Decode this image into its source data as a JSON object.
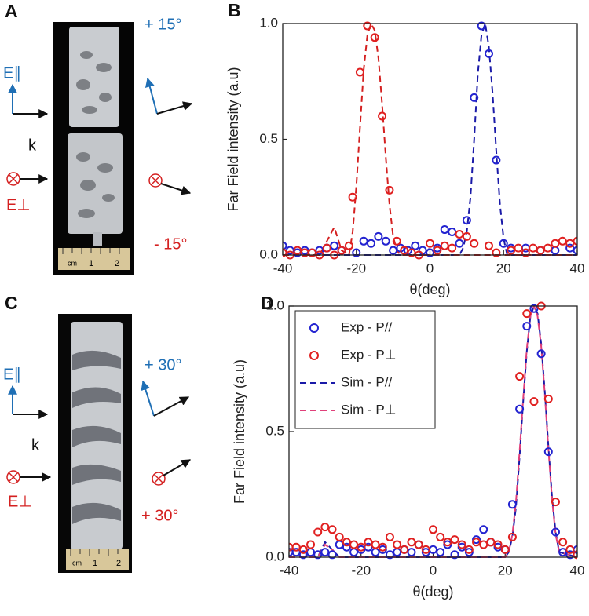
{
  "panels": [
    {
      "label": "A",
      "e_par": "E∥",
      "k": "k",
      "e_perp": "E⊥",
      "angle_top": "+ 15°",
      "angle_bottom": "- 15°",
      "ruler": [
        "cm",
        "1",
        "2"
      ]
    },
    {
      "label": "C",
      "e_par": "E∥",
      "k": "k",
      "e_perp": "E⊥",
      "angle_top": "+ 30°",
      "angle_bottom": "+ 30°",
      "ruler": [
        "cm",
        "1",
        "2"
      ]
    }
  ],
  "chart_data": [
    {
      "type": "line",
      "label": "B",
      "xlabel": "θ(deg)",
      "ylabel": "Far Field intensity (a.u)",
      "xlim": [
        -40,
        40
      ],
      "xticks": [
        -40,
        -20,
        0,
        20,
        40
      ],
      "ylim": [
        0,
        1
      ],
      "yticks": [
        {
          "value": 0,
          "label": "0.0"
        },
        {
          "value": 0.5,
          "label": "0.5"
        },
        {
          "value": 1,
          "label": "1.0"
        }
      ],
      "series": [
        {
          "color": "#2323d0",
          "style": "markers",
          "x": [
            -40,
            -38,
            -36,
            -34,
            -32,
            -30,
            -28,
            -26,
            -24,
            -20,
            -18,
            -16,
            -14,
            -12,
            -10,
            -8,
            -6,
            -4,
            -2,
            0,
            2,
            4,
            6,
            8,
            10,
            12,
            14,
            16,
            18,
            20,
            22,
            26,
            30,
            34,
            38,
            40
          ],
          "values": [
            0.04,
            0.02,
            0.01,
            0.02,
            0.01,
            0.02,
            0.03,
            0.04,
            0.02,
            0.01,
            0.06,
            0.05,
            0.08,
            0.06,
            0.02,
            0.03,
            0.02,
            0.04,
            0.02,
            0.01,
            0.03,
            0.11,
            0.1,
            0.05,
            0.15,
            0.68,
            0.99,
            0.87,
            0.41,
            0.05,
            0.03,
            0.03,
            0.02,
            0.02,
            0.03,
            0.02
          ]
        },
        {
          "color": "#e02020",
          "style": "markers",
          "x": [
            -40,
            -38,
            -36,
            -34,
            -32,
            -30,
            -28,
            -26,
            -24,
            -22,
            -21,
            -19,
            -17,
            -15,
            -13,
            -11,
            -9,
            -7,
            -5,
            -3,
            0,
            2,
            4,
            6,
            8,
            10,
            12,
            16,
            18,
            22,
            24,
            26,
            28,
            30,
            32,
            34,
            36,
            38,
            40
          ],
          "values": [
            0.01,
            0.0,
            0.02,
            0.01,
            0.01,
            0.0,
            0.03,
            0.0,
            0.02,
            0.04,
            0.25,
            0.79,
            0.99,
            0.94,
            0.6,
            0.28,
            0.06,
            0.02,
            0.01,
            0.0,
            0.05,
            0.02,
            0.04,
            0.03,
            0.09,
            0.08,
            0.05,
            0.04,
            0.01,
            0.02,
            0.03,
            0.01,
            0.03,
            0.02,
            0.03,
            0.05,
            0.06,
            0.05,
            0.06
          ]
        },
        {
          "color": "#1a1aa8",
          "style": "dashed",
          "x": [
            -40,
            -2,
            0,
            2,
            4,
            8,
            9,
            10,
            11,
            12,
            13,
            14,
            15,
            16,
            17,
            18,
            19,
            20,
            21,
            40
          ],
          "values": [
            0.0,
            0.0,
            0.03,
            0.0,
            0.0,
            0.0,
            0.03,
            0.1,
            0.25,
            0.5,
            0.78,
            0.95,
            1.0,
            0.9,
            0.7,
            0.45,
            0.22,
            0.07,
            0.0,
            0.0
          ]
        },
        {
          "color": "#d42020",
          "style": "dashed",
          "x": [
            -40,
            -30,
            -28,
            -26,
            -24,
            -22,
            -21,
            -20,
            -19,
            -18,
            -17,
            -16,
            -15,
            -14,
            -13,
            -12,
            -11,
            -10,
            -9,
            -8,
            40
          ],
          "values": [
            0.0,
            0.0,
            0.06,
            0.12,
            0.02,
            0.0,
            0.1,
            0.3,
            0.55,
            0.8,
            0.95,
            1.0,
            0.97,
            0.85,
            0.65,
            0.42,
            0.22,
            0.08,
            0.02,
            0.0,
            0.0
          ]
        }
      ]
    },
    {
      "type": "line",
      "label": "D",
      "xlabel": "θ(deg)",
      "ylabel": "Far Field intensity (a.u)",
      "xlim": [
        -40,
        40
      ],
      "xticks": [
        -40,
        -20,
        0,
        20,
        40
      ],
      "ylim": [
        0,
        1
      ],
      "yticks": [
        {
          "value": 0,
          "label": "0.0"
        },
        {
          "value": 0.5,
          "label": "0.5"
        },
        {
          "value": 1,
          "label": "1.0"
        }
      ],
      "legend": "upper left",
      "series": [
        {
          "name": "Exp - P//",
          "color": "#2323d0",
          "style": "markers",
          "x": [
            -40,
            -38,
            -36,
            -34,
            -32,
            -30,
            -28,
            -26,
            -24,
            -22,
            -20,
            -18,
            -16,
            -14,
            -12,
            -10,
            -8,
            -6,
            -4,
            -2,
            0,
            2,
            4,
            6,
            8,
            10,
            12,
            14,
            16,
            18,
            20,
            22,
            24,
            26,
            28,
            30,
            32,
            34,
            36,
            38,
            40
          ],
          "values": [
            0.02,
            0.02,
            0.01,
            0.02,
            0.01,
            0.02,
            0.01,
            0.05,
            0.04,
            0.02,
            0.03,
            0.04,
            0.02,
            0.03,
            0.01,
            0.02,
            0.03,
            0.02,
            0.05,
            0.02,
            0.03,
            0.02,
            0.05,
            0.01,
            0.04,
            0.02,
            0.07,
            0.11,
            0.06,
            0.04,
            0.03,
            0.21,
            0.59,
            0.92,
            0.99,
            0.81,
            0.42,
            0.1,
            0.02,
            0.01,
            0.03
          ]
        },
        {
          "name": "Exp - P⊥",
          "color": "#e02020",
          "style": "markers",
          "x": [
            -40,
            -38,
            -36,
            -34,
            -32,
            -30,
            -28,
            -26,
            -24,
            -22,
            -20,
            -18,
            -16,
            -14,
            -12,
            -10,
            -8,
            -6,
            -4,
            -2,
            0,
            2,
            4,
            6,
            8,
            10,
            12,
            14,
            16,
            18,
            20,
            22,
            24,
            26,
            28,
            30,
            32,
            34,
            36,
            38,
            40
          ],
          "values": [
            0.04,
            0.04,
            0.03,
            0.05,
            0.1,
            0.12,
            0.11,
            0.08,
            0.06,
            0.05,
            0.04,
            0.06,
            0.05,
            0.04,
            0.08,
            0.05,
            0.03,
            0.06,
            0.05,
            0.03,
            0.11,
            0.08,
            0.06,
            0.07,
            0.05,
            0.03,
            0.06,
            0.05,
            0.06,
            0.05,
            0.03,
            0.08,
            0.72,
            0.97,
            0.62,
            1.0,
            0.63,
            0.22,
            0.06,
            0.03,
            0.01
          ]
        },
        {
          "name": "Sim - P//",
          "color": "#1a1aa8",
          "style": "dashed",
          "x": [
            -40,
            -32,
            -30,
            -28,
            -26,
            20,
            21,
            22,
            23,
            24,
            25,
            26,
            27,
            28,
            29,
            30,
            31,
            32,
            33,
            34,
            35,
            40
          ],
          "values": [
            0.0,
            0.0,
            0.06,
            0.03,
            0.0,
            0.0,
            0.02,
            0.08,
            0.2,
            0.4,
            0.62,
            0.82,
            0.96,
            1.0,
            0.97,
            0.85,
            0.66,
            0.44,
            0.24,
            0.1,
            0.02,
            0.0
          ]
        },
        {
          "name": "Sim - P⊥",
          "color": "#e0407a",
          "style": "dashed",
          "x": [
            -40,
            -32,
            -30,
            -28,
            -26,
            20,
            21,
            22,
            23,
            24,
            25,
            26,
            27,
            28,
            29,
            30,
            31,
            32,
            33,
            34,
            35,
            40
          ],
          "values": [
            0.0,
            0.0,
            0.05,
            0.03,
            0.0,
            0.0,
            0.02,
            0.09,
            0.22,
            0.42,
            0.63,
            0.83,
            0.96,
            1.0,
            0.96,
            0.84,
            0.65,
            0.43,
            0.23,
            0.09,
            0.02,
            0.0
          ]
        }
      ]
    }
  ]
}
